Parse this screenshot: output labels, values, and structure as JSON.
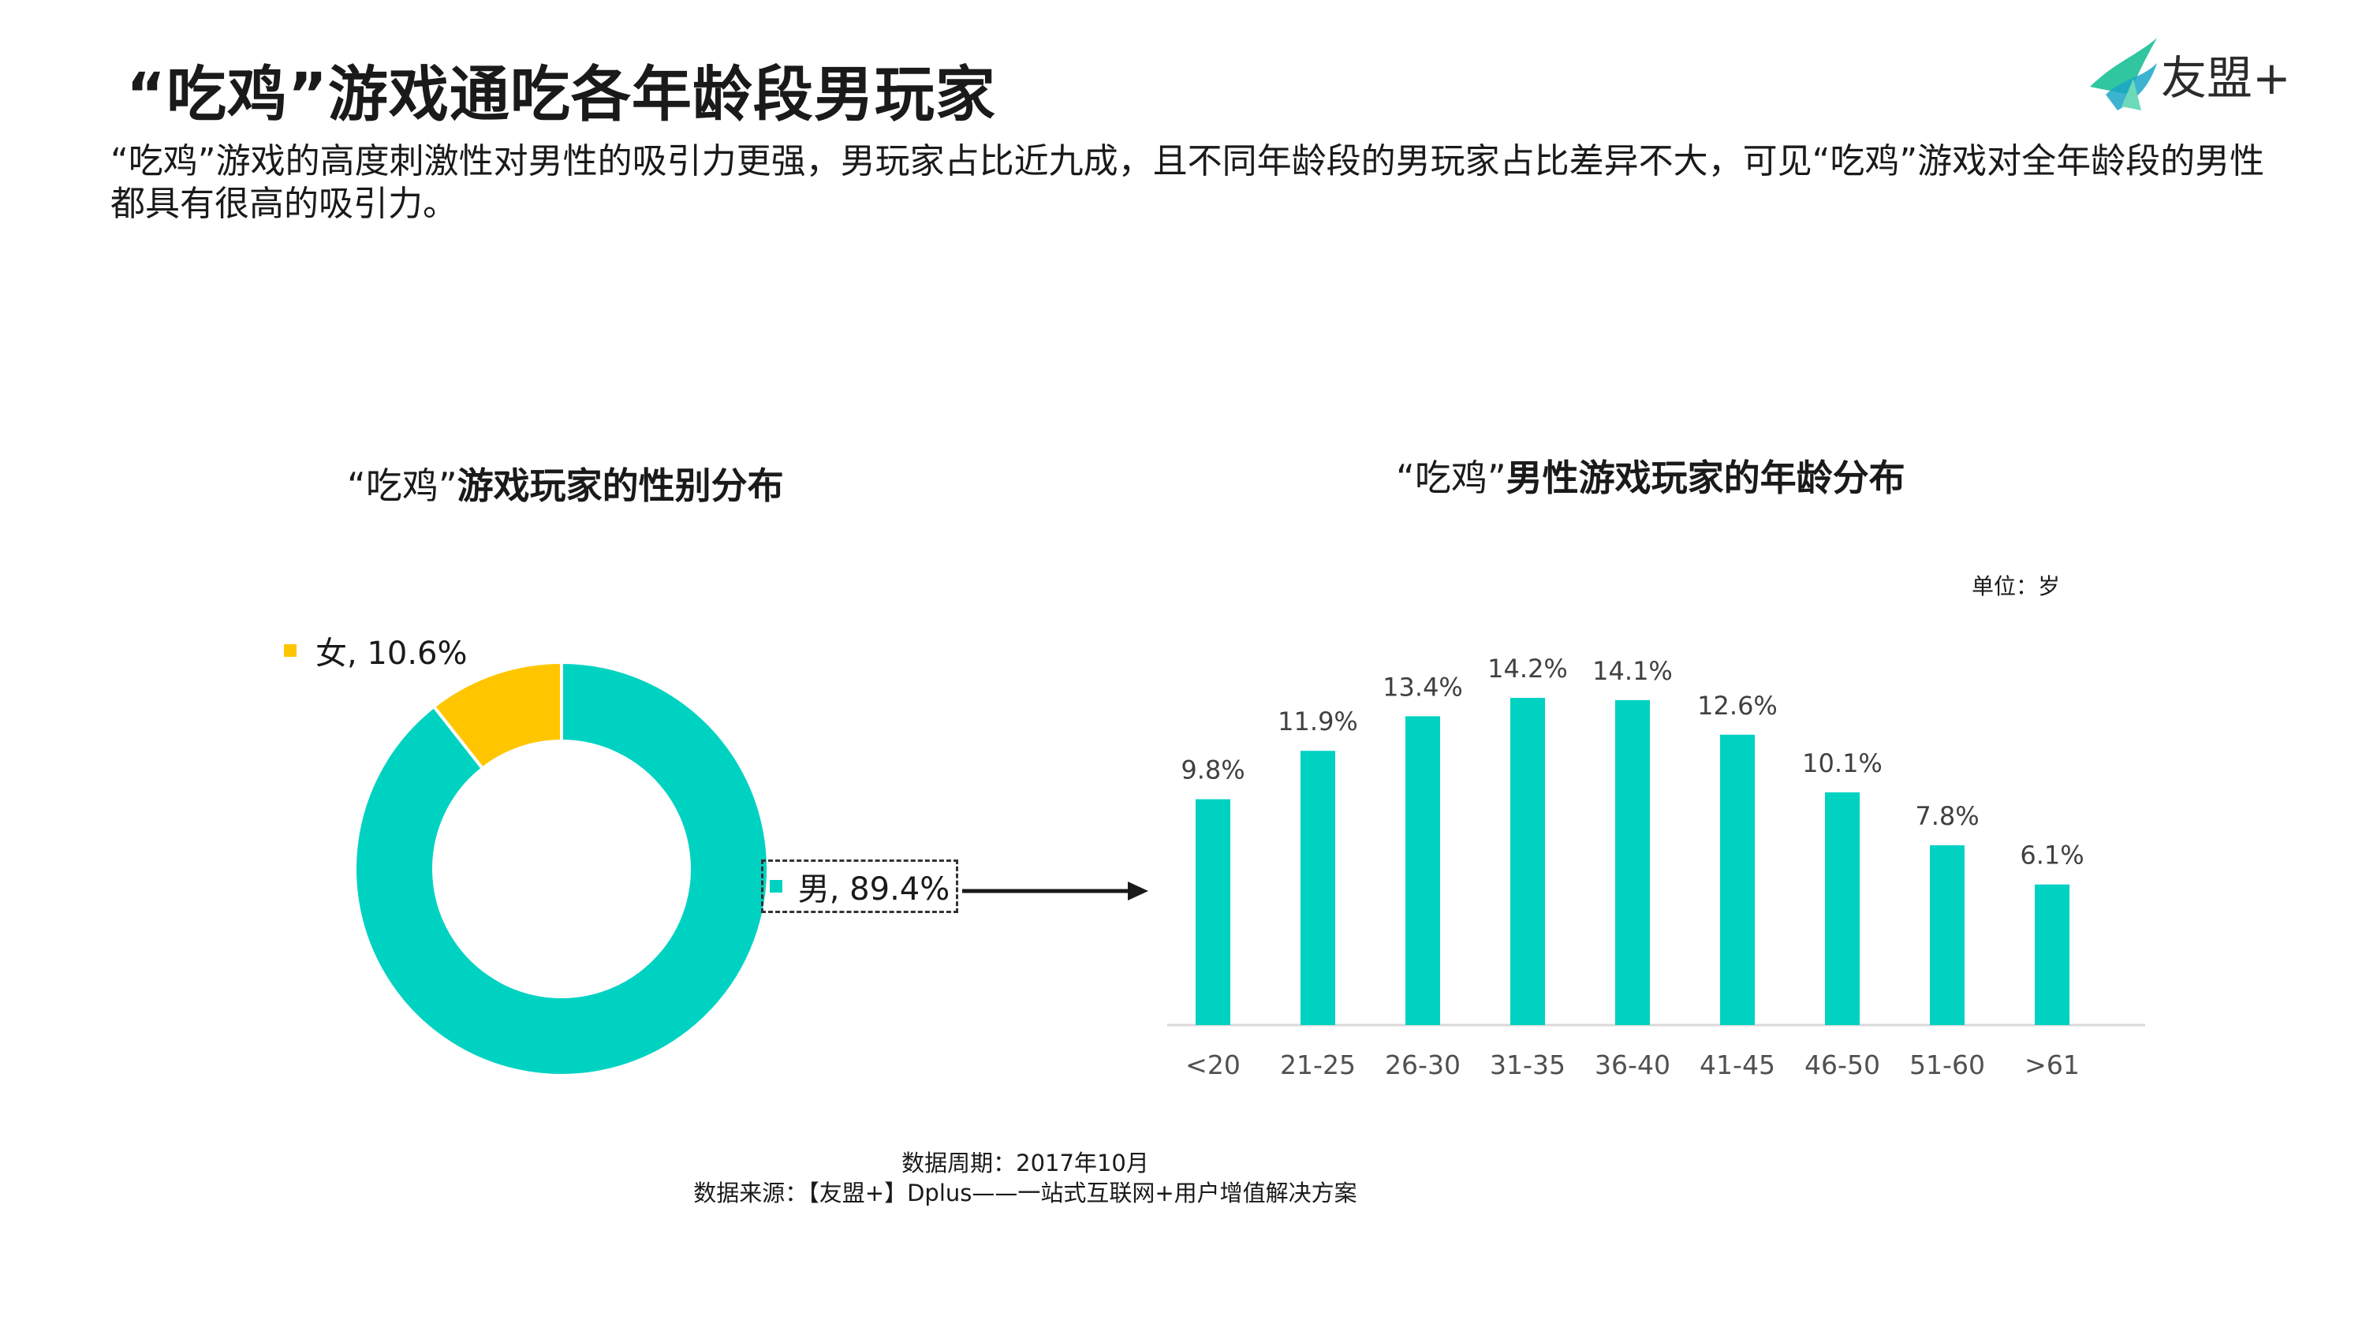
{
  "header": {
    "title": "“吃鸡”游戏通吃各年龄段男玩家",
    "subtitle": "“吃鸡”游戏的高度刺激性对男性的吸引力更强，男玩家占比近九成，且不同年龄段的男玩家占比差异不大，可见“吃鸡”游戏对全年龄段的男性都具有很高的吸引力。",
    "logo_text": "友盟+"
  },
  "donut_chart": {
    "title_prefix": "“吃鸡”",
    "title_main": "游戏玩家的性别分布",
    "female_label": "女, 10.6%",
    "male_label": "男, 89.4%"
  },
  "bar_chart": {
    "title_prefix": "“吃鸡”",
    "title_main": "男性游戏玩家的年龄分布",
    "unit_label": "单位：岁"
  },
  "footer": {
    "period": "数据周期：2017年10月",
    "source": "数据来源：【友盟+】Dplus——一站式互联网+用户增值解决方案"
  },
  "colors": {
    "teal": "#00D2C2",
    "yellow": "#FFC600",
    "logo_green": "#2FC6A0",
    "axis": "#d9d9d9"
  },
  "chart_data": [
    {
      "type": "pie",
      "title": "“吃鸡”游戏玩家的性别分布",
      "categories": [
        "男",
        "女"
      ],
      "values": [
        89.4,
        10.6
      ],
      "value_labels": [
        "男, 89.4%",
        "女, 10.6%"
      ],
      "donut": true
    },
    {
      "type": "bar",
      "title": "“吃鸡”男性游戏玩家的年龄分布",
      "categories": [
        "<20",
        "21-25",
        "26-30",
        "31-35",
        "36-40",
        "41-45",
        "46-50",
        "51-60",
        ">61"
      ],
      "values": [
        9.8,
        11.9,
        13.4,
        14.2,
        14.1,
        12.6,
        10.1,
        7.8,
        6.1
      ],
      "value_labels": [
        "9.8%",
        "11.9%",
        "13.4%",
        "14.2%",
        "14.1%",
        "12.6%",
        "10.1%",
        "7.8%",
        "6.1%"
      ],
      "unit": "单位：岁",
      "ylim": [
        0,
        16
      ],
      "grid": false
    }
  ]
}
